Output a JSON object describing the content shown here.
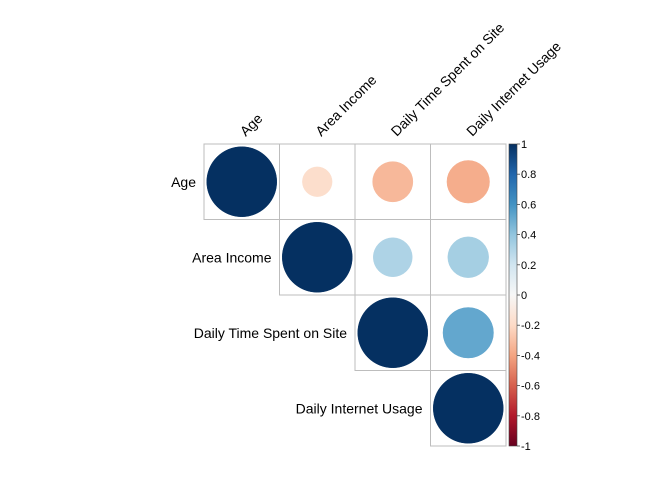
{
  "chart_data": {
    "type": "heatmap",
    "variables": [
      "Age",
      "Area Income",
      "Daily Time Spent on Site",
      "Daily Internet Usage"
    ],
    "matrix": [
      [
        1.0,
        -0.18,
        -0.33,
        -0.37
      ],
      [
        -0.18,
        1.0,
        0.31,
        0.34
      ],
      [
        -0.33,
        0.31,
        1.0,
        0.52
      ],
      [
        -0.37,
        0.34,
        0.52,
        1.0
      ]
    ],
    "display": "upper-triangle",
    "glyph": "circle",
    "colorbar": {
      "range": [
        -1,
        1
      ],
      "ticks": [
        "1",
        "0.8",
        "0.6",
        "0.4",
        "0.2",
        "0",
        "-0.2",
        "-0.4",
        "-0.6",
        "-0.8",
        "-1"
      ],
      "colors": {
        "neg1": "#67001f",
        "neg06": "#d6604d",
        "neg02": "#fddbc7",
        "zero": "#f7f7f7",
        "pos02": "#d1e5f0",
        "pos06": "#4393c3",
        "pos1": "#053061"
      }
    }
  }
}
